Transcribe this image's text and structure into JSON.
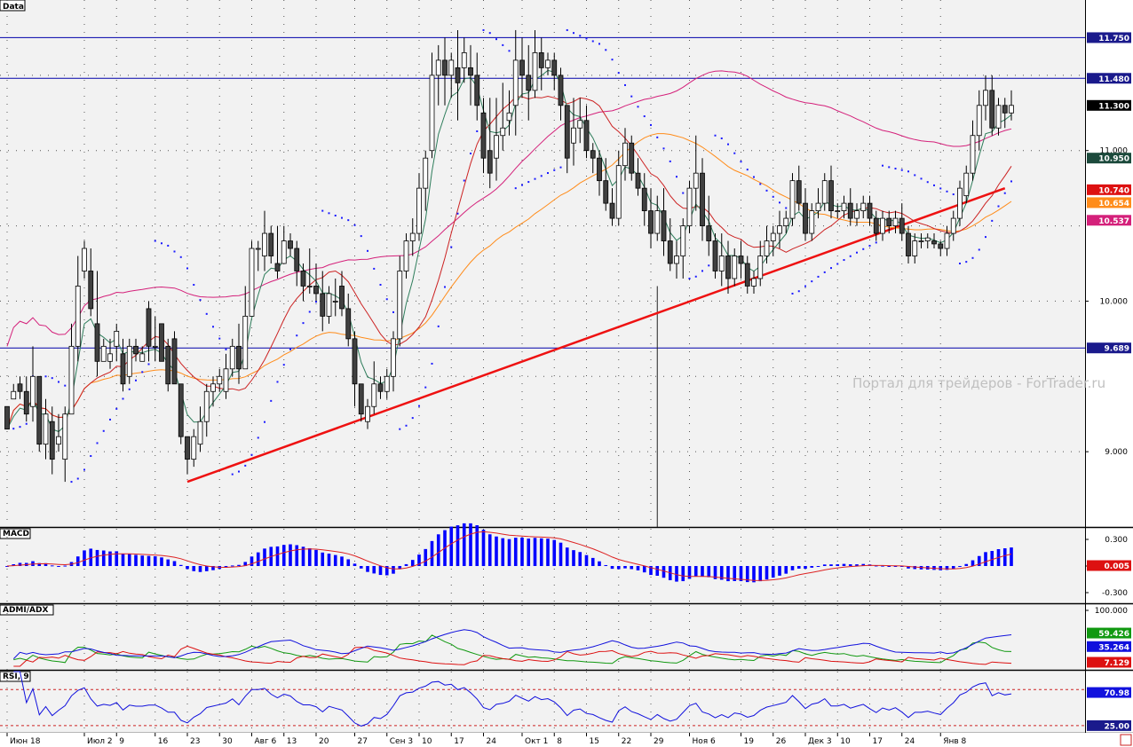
{
  "panes": {
    "price": {
      "title": "Data"
    },
    "macd": {
      "title": "MACD"
    },
    "adx": {
      "title": "ADMI/ADX"
    },
    "rsi": {
      "title": "RSI, 9"
    }
  },
  "watermark": "Портал для трейдеров - ForTrader.ru",
  "colors": {
    "background": "#f2f2f2",
    "candle_up": "#ffffff",
    "candle_down": "#404040",
    "ma_fast": "#2e7d5b",
    "ma_mid": "#cc2222",
    "ma_slow": "#ff8c1a",
    "ma_long": "#d4207a",
    "sar": "#1a1aff",
    "hline": "#0000aa",
    "trendline": "#ee1111",
    "macd_hist": "#0000ff",
    "macd_signal": "#dd2222",
    "adx_plus": "#119911",
    "adx_minus": "#dd1111",
    "adx_line": "#1111dd",
    "rsi_line": "#1111dd",
    "rsi_levels": "#cc2222"
  },
  "chart_data": [
    {
      "type": "candlestick",
      "pane": "price",
      "ylim": [
        8.5,
        12.0
      ],
      "y_ticks": [
        "11.000",
        "10.000",
        "9.000"
      ],
      "x_ticks": [
        "Июн 18",
        "Июл 2",
        "9",
        "16",
        "23",
        "30",
        "Авг 6",
        "13",
        "20",
        "27",
        "Сен 3",
        "10",
        "17",
        "24",
        "Окт 1",
        "8",
        "15",
        "22",
        "29",
        "Ноя 6",
        "19",
        "26",
        "Дек 3",
        "10",
        "17",
        "24",
        "Янв 8"
      ],
      "x_tick_index": [
        0,
        12,
        17,
        23,
        28,
        33,
        38,
        43,
        48,
        54,
        59,
        64,
        69,
        74,
        80,
        85,
        90,
        95,
        100,
        106,
        114,
        119,
        124,
        129,
        134,
        139,
        145
      ],
      "horizontal_lines": [
        11.75,
        11.48,
        9.689
      ],
      "price_labels": [
        {
          "text": "11.750",
          "value": 11.75,
          "bg": "#1a1a8c"
        },
        {
          "text": "11.480",
          "value": 11.48,
          "bg": "#1a1a8c"
        },
        {
          "text": "11.300",
          "value": 11.3,
          "bg": "#000000"
        },
        {
          "text": "10.950",
          "value": 10.95,
          "bg": "#1c4a3c"
        },
        {
          "text": "10.740",
          "value": 10.74,
          "bg": "#dd1111"
        },
        {
          "text": "10.654",
          "value": 10.654,
          "bg": "#ff8c1a"
        },
        {
          "text": "10.537",
          "value": 10.537,
          "bg": "#d4207a"
        },
        {
          "text": "9.689",
          "value": 9.689,
          "bg": "#1a1a8c"
        }
      ],
      "trendline": {
        "from": [
          28,
          8.8
        ],
        "to": [
          155,
          10.75
        ]
      },
      "vertical_line_index": 101,
      "candles": [
        [
          9.3,
          9.3,
          9.15,
          9.15
        ],
        [
          9.35,
          9.45,
          9.35,
          9.4
        ],
        [
          9.45,
          9.5,
          9.35,
          9.4
        ],
        [
          9.4,
          9.5,
          9.2,
          9.25
        ],
        [
          9.3,
          9.7,
          9.2,
          9.5
        ],
        [
          9.5,
          9.5,
          9.0,
          9.05
        ],
        [
          9.05,
          9.35,
          8.95,
          9.25
        ],
        [
          9.2,
          9.3,
          8.85,
          8.95
        ],
        [
          9.05,
          9.25,
          9.0,
          9.1
        ],
        [
          8.95,
          9.3,
          8.8,
          9.25
        ],
        [
          9.25,
          9.85,
          9.25,
          9.7
        ],
        [
          9.7,
          10.3,
          9.6,
          10.1
        ],
        [
          10.2,
          10.4,
          10.15,
          10.35
        ],
        [
          10.2,
          10.35,
          9.9,
          9.95
        ],
        [
          9.85,
          10.2,
          9.5,
          9.6
        ],
        [
          9.6,
          9.75,
          9.6,
          9.7
        ],
        [
          9.6,
          9.75,
          9.55,
          9.65
        ],
        [
          9.7,
          9.85,
          9.6,
          9.8
        ],
        [
          9.65,
          9.75,
          9.4,
          9.45
        ],
        [
          9.5,
          9.75,
          9.45,
          9.7
        ],
        [
          9.7,
          9.75,
          9.6,
          9.65
        ],
        [
          9.6,
          9.7,
          9.6,
          9.65
        ],
        [
          9.95,
          10.0,
          9.6,
          9.7
        ],
        [
          9.7,
          9.9,
          9.6,
          9.7
        ],
        [
          9.85,
          9.85,
          9.6,
          9.6
        ],
        [
          9.7,
          9.75,
          9.4,
          9.45
        ],
        [
          9.75,
          9.8,
          9.45,
          9.45
        ],
        [
          9.45,
          9.45,
          9.05,
          9.1
        ],
        [
          9.1,
          9.1,
          8.85,
          8.95
        ],
        [
          8.95,
          9.15,
          8.9,
          9.1
        ],
        [
          9.05,
          9.3,
          9.0,
          9.2
        ],
        [
          9.2,
          9.45,
          9.1,
          9.4
        ],
        [
          9.4,
          9.5,
          9.3,
          9.45
        ],
        [
          9.45,
          9.55,
          9.4,
          9.5
        ],
        [
          9.4,
          9.65,
          9.35,
          9.55
        ],
        [
          9.55,
          9.75,
          9.5,
          9.7
        ],
        [
          9.7,
          9.85,
          9.45,
          9.55
        ],
        [
          9.55,
          10.1,
          9.55,
          9.9
        ],
        [
          9.9,
          10.4,
          9.9,
          10.35
        ],
        [
          10.35,
          10.4,
          10.2,
          10.35
        ],
        [
          10.3,
          10.6,
          10.2,
          10.45
        ],
        [
          10.45,
          10.5,
          10.25,
          10.3
        ],
        [
          10.25,
          10.5,
          10.15,
          10.2
        ],
        [
          10.25,
          10.5,
          10.25,
          10.4
        ],
        [
          10.4,
          10.45,
          10.3,
          10.35
        ],
        [
          10.35,
          10.4,
          10.1,
          10.2
        ],
        [
          10.2,
          10.25,
          10.0,
          10.1
        ],
        [
          10.1,
          10.35,
          10.05,
          10.1
        ],
        [
          10.1,
          10.25,
          10.0,
          10.05
        ],
        [
          10.05,
          10.2,
          9.8,
          9.9
        ],
        [
          9.9,
          10.1,
          9.85,
          10.05
        ],
        [
          10.0,
          10.15,
          9.9,
          10.0
        ],
        [
          10.1,
          10.2,
          9.9,
          9.95
        ],
        [
          9.95,
          10.05,
          9.7,
          9.75
        ],
        [
          9.75,
          9.8,
          9.3,
          9.45
        ],
        [
          9.45,
          9.45,
          9.2,
          9.25
        ],
        [
          9.2,
          9.35,
          9.15,
          9.3
        ],
        [
          9.3,
          9.6,
          9.25,
          9.45
        ],
        [
          9.45,
          9.5,
          9.35,
          9.4
        ],
        [
          9.4,
          9.55,
          9.35,
          9.5
        ],
        [
          9.5,
          9.8,
          9.4,
          9.75
        ],
        [
          9.75,
          10.3,
          9.7,
          10.2
        ],
        [
          10.2,
          10.45,
          10.15,
          10.4
        ],
        [
          10.4,
          10.55,
          10.3,
          10.45
        ],
        [
          10.45,
          10.85,
          10.4,
          10.75
        ],
        [
          10.75,
          11.0,
          10.6,
          10.95
        ],
        [
          11.0,
          11.65,
          10.95,
          11.5
        ],
        [
          11.5,
          11.7,
          11.3,
          11.6
        ],
        [
          11.6,
          11.75,
          11.3,
          11.5
        ],
        [
          11.5,
          11.65,
          11.35,
          11.6
        ],
        [
          11.55,
          11.8,
          11.2,
          11.45
        ],
        [
          11.55,
          11.75,
          11.45,
          11.65
        ],
        [
          11.55,
          11.7,
          11.3,
          11.5
        ],
        [
          11.5,
          11.65,
          11.2,
          11.3
        ],
        [
          11.25,
          11.35,
          10.85,
          10.95
        ],
        [
          11.0,
          11.35,
          10.75,
          10.85
        ],
        [
          10.95,
          11.35,
          10.8,
          11.1
        ],
        [
          11.1,
          11.45,
          11.0,
          11.15
        ],
        [
          11.2,
          11.4,
          11.1,
          11.25
        ],
        [
          11.3,
          11.8,
          11.1,
          11.6
        ],
        [
          11.6,
          11.75,
          11.35,
          11.5
        ],
        [
          11.5,
          11.7,
          11.2,
          11.4
        ],
        [
          11.4,
          11.8,
          11.35,
          11.65
        ],
        [
          11.65,
          11.75,
          11.4,
          11.55
        ],
        [
          11.55,
          11.65,
          11.5,
          11.6
        ],
        [
          11.6,
          11.65,
          11.4,
          11.5
        ],
        [
          11.5,
          11.55,
          11.2,
          11.3
        ],
        [
          11.3,
          11.3,
          10.85,
          10.95
        ],
        [
          11.05,
          11.35,
          10.9,
          11.15
        ],
        [
          11.15,
          11.35,
          11.05,
          11.2
        ],
        [
          11.2,
          11.3,
          10.95,
          11.0
        ],
        [
          11.0,
          11.05,
          10.85,
          10.95
        ],
        [
          10.95,
          11.0,
          10.7,
          10.8
        ],
        [
          10.8,
          10.95,
          10.6,
          10.65
        ],
        [
          10.65,
          10.75,
          10.5,
          10.55
        ],
        [
          10.55,
          11.0,
          10.5,
          10.9
        ],
        [
          10.9,
          11.15,
          10.8,
          11.05
        ],
        [
          11.05,
          11.1,
          10.8,
          10.85
        ],
        [
          10.85,
          10.95,
          10.7,
          10.75
        ],
        [
          10.75,
          10.85,
          10.5,
          10.6
        ],
        [
          10.6,
          10.75,
          10.35,
          10.45
        ],
        [
          10.45,
          10.7,
          10.4,
          10.6
        ],
        [
          10.6,
          10.75,
          10.3,
          10.4
        ],
        [
          10.4,
          10.55,
          10.2,
          10.25
        ],
        [
          10.25,
          10.4,
          10.15,
          10.3
        ],
        [
          10.3,
          10.55,
          10.15,
          10.5
        ],
        [
          10.5,
          10.8,
          10.45,
          10.75
        ],
        [
          10.75,
          11.1,
          10.6,
          10.85
        ],
        [
          10.85,
          10.95,
          10.4,
          10.5
        ],
        [
          10.5,
          10.7,
          10.3,
          10.4
        ],
        [
          10.4,
          10.45,
          10.15,
          10.2
        ],
        [
          10.2,
          10.45,
          10.1,
          10.3
        ],
        [
          10.3,
          10.4,
          10.05,
          10.15
        ],
        [
          10.15,
          10.35,
          10.1,
          10.3
        ],
        [
          10.3,
          10.4,
          10.15,
          10.25
        ],
        [
          10.25,
          10.3,
          10.05,
          10.1
        ],
        [
          10.1,
          10.2,
          10.05,
          10.15
        ],
        [
          10.15,
          10.4,
          10.1,
          10.3
        ],
        [
          10.3,
          10.5,
          10.25,
          10.4
        ],
        [
          10.4,
          10.5,
          10.3,
          10.45
        ],
        [
          10.45,
          10.6,
          10.35,
          10.5
        ],
        [
          10.5,
          10.6,
          10.45,
          10.55
        ],
        [
          10.55,
          10.85,
          10.5,
          10.8
        ],
        [
          10.8,
          10.9,
          10.6,
          10.65
        ],
        [
          10.65,
          10.75,
          10.4,
          10.45
        ],
        [
          10.45,
          10.65,
          10.4,
          10.6
        ],
        [
          10.6,
          10.75,
          10.55,
          10.65
        ],
        [
          10.65,
          10.85,
          10.6,
          10.8
        ],
        [
          10.8,
          10.9,
          10.55,
          10.6
        ],
        [
          10.6,
          10.65,
          10.55,
          10.6
        ],
        [
          10.6,
          10.7,
          10.55,
          10.65
        ],
        [
          10.65,
          10.75,
          10.5,
          10.55
        ],
        [
          10.55,
          10.65,
          10.5,
          10.6
        ],
        [
          10.6,
          10.7,
          10.55,
          10.65
        ],
        [
          10.65,
          10.7,
          10.5,
          10.55
        ],
        [
          10.55,
          10.6,
          10.4,
          10.45
        ],
        [
          10.45,
          10.6,
          10.4,
          10.55
        ],
        [
          10.55,
          10.6,
          10.45,
          10.5
        ],
        [
          10.5,
          10.6,
          10.45,
          10.55
        ],
        [
          10.55,
          10.65,
          10.4,
          10.45
        ],
        [
          10.45,
          10.5,
          10.25,
          10.3
        ],
        [
          10.3,
          10.45,
          10.25,
          10.4
        ],
        [
          10.4,
          10.45,
          10.35,
          10.4
        ],
        [
          10.4,
          10.45,
          10.35,
          10.42
        ],
        [
          10.4,
          10.45,
          10.35,
          10.38
        ],
        [
          10.38,
          10.4,
          10.3,
          10.35
        ],
        [
          10.35,
          10.5,
          10.3,
          10.45
        ],
        [
          10.45,
          10.6,
          10.4,
          10.55
        ],
        [
          10.55,
          10.8,
          10.5,
          10.75
        ],
        [
          10.7,
          10.9,
          10.65,
          10.85
        ],
        [
          10.85,
          11.2,
          10.8,
          11.1
        ],
        [
          11.1,
          11.4,
          11.0,
          11.3
        ],
        [
          11.3,
          11.5,
          11.2,
          11.4
        ],
        [
          11.4,
          11.5,
          11.1,
          11.15
        ],
        [
          11.15,
          11.35,
          11.1,
          11.3
        ],
        [
          11.3,
          11.35,
          11.15,
          11.25
        ],
        [
          11.25,
          11.4,
          11.2,
          11.3
        ]
      ]
    },
    {
      "type": "bar",
      "pane": "macd",
      "ylim": [
        -0.42,
        0.42
      ],
      "y_ticks": [
        "0.300",
        "0.000",
        "-0.300"
      ],
      "value_labels": [
        {
          "text": "0.005",
          "value": 0.005,
          "bg": "#dd1111"
        }
      ],
      "series": [
        {
          "name": "MACD",
          "values": "computed"
        },
        {
          "name": "Signal",
          "values": "computed"
        }
      ]
    },
    {
      "type": "line",
      "pane": "adx",
      "ylim": [
        0,
        100
      ],
      "y_ticks": [
        "100.000"
      ],
      "value_labels": [
        {
          "text": "59.426",
          "value": 59.426,
          "bg": "#119911"
        },
        {
          "text": "35.264",
          "value": 35.264,
          "bg": "#1111dd"
        },
        {
          "text": "7.129",
          "value": 7.129,
          "bg": "#dd1111"
        }
      ]
    },
    {
      "type": "line",
      "pane": "rsi",
      "ylim": [
        15,
        100
      ],
      "levels": [
        75,
        25
      ],
      "value_labels": [
        {
          "text": "70.98",
          "value": 70.98,
          "bg": "#1111dd"
        },
        {
          "text": "25.00",
          "value": 25.0,
          "bg": "#1a1a8c"
        }
      ]
    }
  ]
}
